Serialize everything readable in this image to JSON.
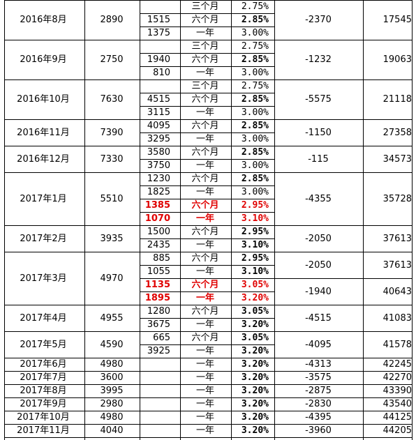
{
  "table": {
    "groups": [
      {
        "month": "2016年8月",
        "total": "2890",
        "diff": "-2370",
        "balance": "17545",
        "rows": [
          {
            "amt": "",
            "term": "三个月",
            "rate": "2.75%",
            "style": ""
          },
          {
            "amt": "1515",
            "term": "六个月",
            "rate": "2.85%",
            "style": "b"
          },
          {
            "amt": "1375",
            "term": "一年",
            "rate": "3.00%",
            "style": ""
          }
        ]
      },
      {
        "month": "2016年9月",
        "total": "2750",
        "diff": "-1232",
        "balance": "19063",
        "rows": [
          {
            "amt": "",
            "term": "三个月",
            "rate": "2.75%",
            "style": ""
          },
          {
            "amt": "1940",
            "term": "六个月",
            "rate": "2.85%",
            "style": "b"
          },
          {
            "amt": "810",
            "term": "一年",
            "rate": "3.00%",
            "style": ""
          }
        ]
      },
      {
        "month": "2016年10月",
        "total": "7630",
        "diff": "-5575",
        "balance": "21118",
        "rows": [
          {
            "amt": "",
            "term": "三个月",
            "rate": "2.75%",
            "style": ""
          },
          {
            "amt": "4515",
            "term": "六个月",
            "rate": "2.85%",
            "style": "b"
          },
          {
            "amt": "3115",
            "term": "一年",
            "rate": "3.00%",
            "style": ""
          }
        ]
      },
      {
        "month": "2016年11月",
        "total": "7390",
        "diff": "-1150",
        "balance": "27358",
        "rows": [
          {
            "amt": "4095",
            "term": "六个月",
            "rate": "2.85%",
            "style": "b"
          },
          {
            "amt": "3295",
            "term": "一年",
            "rate": "3.00%",
            "style": ""
          }
        ]
      },
      {
        "month": "2016年12月",
        "total": "7330",
        "diff": "-115",
        "balance": "34573",
        "rows": [
          {
            "amt": "3580",
            "term": "六个月",
            "rate": "2.85%",
            "style": "b"
          },
          {
            "amt": "3750",
            "term": "一年",
            "rate": "3.00%",
            "style": ""
          }
        ]
      },
      {
        "month": "2017年1月",
        "total": "5510",
        "diff": "-4355",
        "balance": "35728",
        "rows": [
          {
            "amt": "1230",
            "term": "六个月",
            "rate": "2.85%",
            "style": "b"
          },
          {
            "amt": "1825",
            "term": "一年",
            "rate": "3.00%",
            "style": ""
          },
          {
            "amt": "1385",
            "term": "六个月",
            "rate": "2.95%",
            "style": "r"
          },
          {
            "amt": "1070",
            "term": "一年",
            "rate": "3.10%",
            "style": "r"
          }
        ]
      },
      {
        "month": "2017年2月",
        "total": "3935",
        "diff": "-2050",
        "balance": "37613",
        "rows": [
          {
            "amt": "1500",
            "term": "六个月",
            "rate": "2.95%",
            "style": "b"
          },
          {
            "amt": "2435",
            "term": "一年",
            "rate": "3.10%",
            "style": "b"
          }
        ]
      },
      {
        "month": "2017年3月",
        "total": "4970",
        "diff": "",
        "balance": "",
        "rows": [
          {
            "amt": "885",
            "term": "六个月",
            "rate": "2.95%",
            "style": "b"
          },
          {
            "amt": "1055",
            "term": "一年",
            "rate": "3.10%",
            "style": "b"
          },
          {
            "amt": "1135",
            "term": "六个月",
            "rate": "3.05%",
            "style": "r"
          },
          {
            "amt": "1895",
            "term": "一年",
            "rate": "3.20%",
            "style": "r"
          }
        ],
        "split": [
          {
            "diff": "-2050",
            "balance": "37613"
          },
          {
            "diff": "-1940",
            "balance": "40643"
          }
        ]
      },
      {
        "month": "2017年4月",
        "total": "4955",
        "diff": "-4515",
        "balance": "41083",
        "rows": [
          {
            "amt": "1280",
            "term": "六个月",
            "rate": "3.05%",
            "style": "b"
          },
          {
            "amt": "3675",
            "term": "一年",
            "rate": "3.20%",
            "style": "b"
          }
        ]
      },
      {
        "month": "2017年5月",
        "total": "4590",
        "diff": "-4095",
        "balance": "41578",
        "rows": [
          {
            "amt": "665",
            "term": "六个月",
            "rate": "3.05%",
            "style": "b"
          },
          {
            "amt": "3925",
            "term": "一年",
            "rate": "3.20%",
            "style": "b"
          }
        ]
      },
      {
        "month": "2017年6月",
        "total": "4980",
        "diff": "-4313",
        "balance": "42245",
        "rows": [
          {
            "amt": "",
            "term": "一年",
            "rate": "3.20%",
            "style": "b"
          }
        ]
      },
      {
        "month": "2017年7月",
        "total": "3600",
        "diff": "-3575",
        "balance": "42270",
        "rows": [
          {
            "amt": "",
            "term": "一年",
            "rate": "3.20%",
            "style": "b"
          }
        ]
      },
      {
        "month": "2017年8月",
        "total": "3995",
        "diff": "-2875",
        "balance": "43390",
        "rows": [
          {
            "amt": "",
            "term": "一年",
            "rate": "3.20%",
            "style": "b"
          }
        ]
      },
      {
        "month": "2017年9月",
        "total": "2980",
        "diff": "-2830",
        "balance": "43540",
        "rows": [
          {
            "amt": "",
            "term": "一年",
            "rate": "3.20%",
            "style": "b"
          }
        ]
      },
      {
        "month": "2017年10月",
        "total": "4980",
        "diff": "-4395",
        "balance": "44125",
        "rows": [
          {
            "amt": "",
            "term": "一年",
            "rate": "3.20%",
            "style": "b"
          }
        ]
      },
      {
        "month": "2017年11月",
        "total": "4040",
        "diff": "-3960",
        "balance": "44205",
        "rows": [
          {
            "amt": "",
            "term": "一年",
            "rate": "3.20%",
            "style": "b"
          }
        ]
      }
    ]
  },
  "colors": {
    "grid": "#000000",
    "highlight": "#e00000",
    "background": "#ffffff"
  }
}
